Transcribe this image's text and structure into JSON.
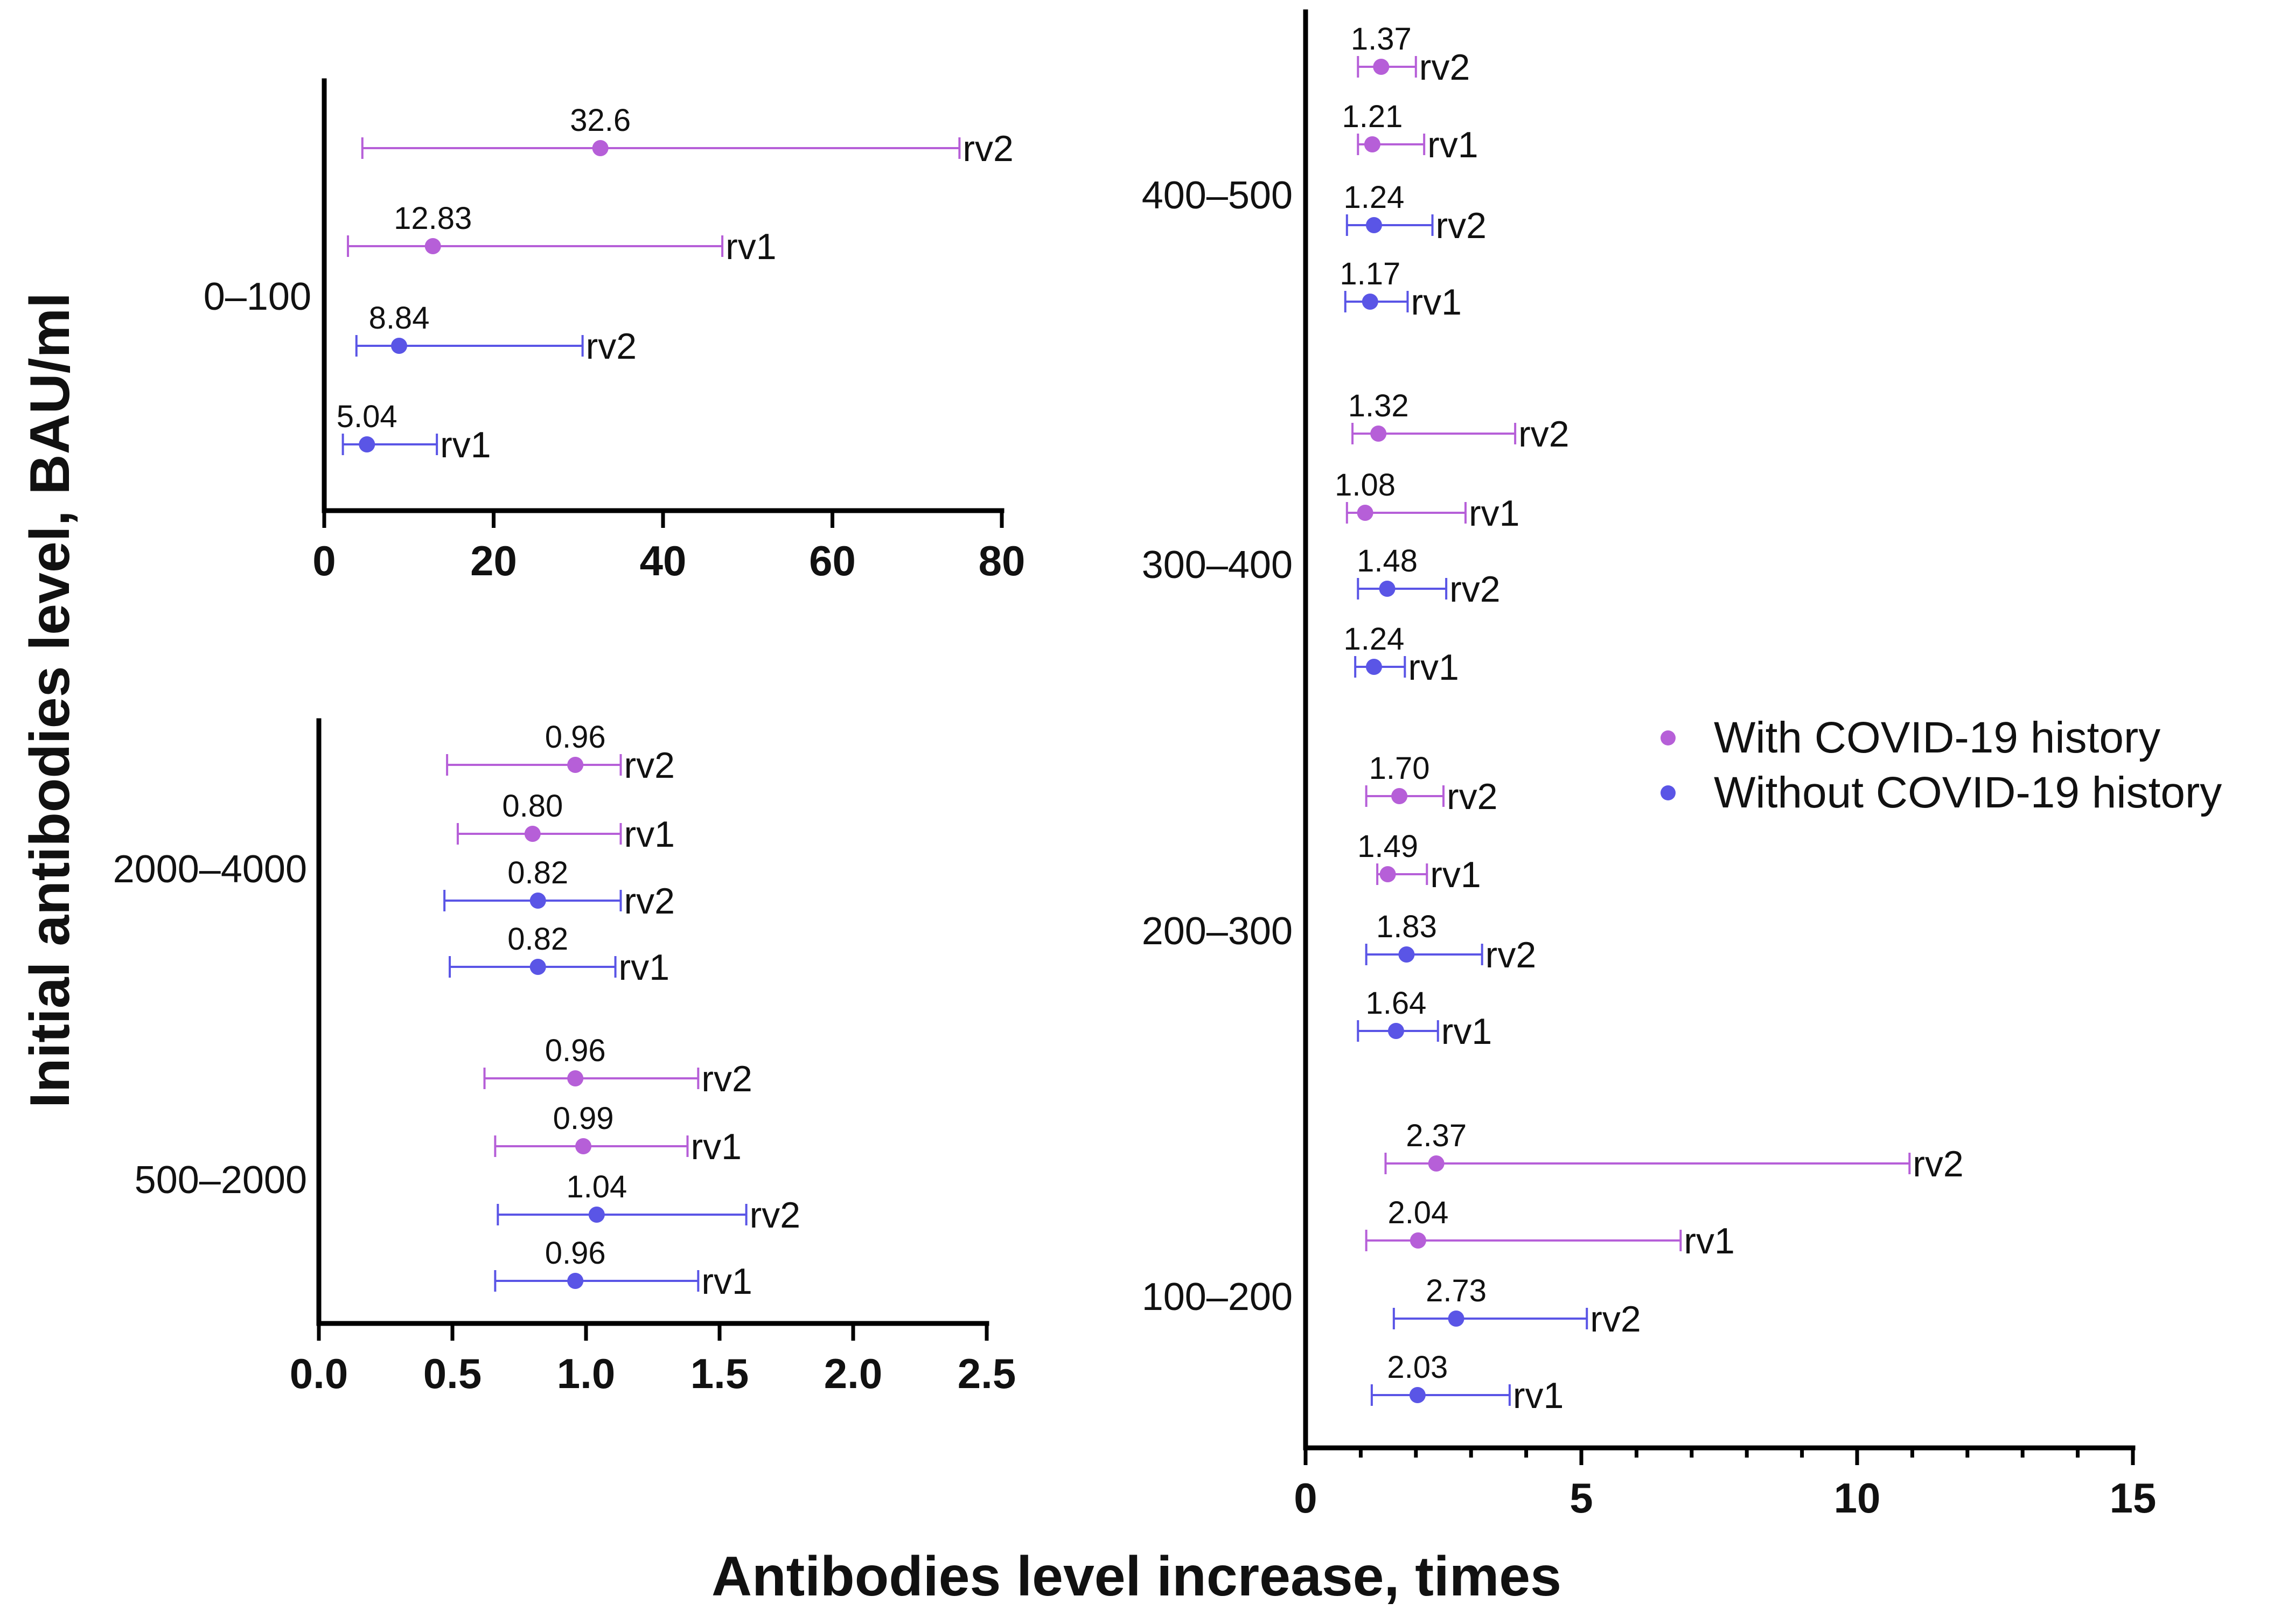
{
  "chart_data": {
    "type": "forest",
    "xlabel": "Antibodies level increase, times",
    "ylabel": "Initial antibodies level, BAU/ml",
    "legend": {
      "position": "right",
      "entries": [
        {
          "key": "with",
          "label": "With COVID-19 history",
          "color": "#b65fd8"
        },
        {
          "key": "without",
          "label": "Without COVID-19 history",
          "color": "#5a55e6"
        }
      ]
    },
    "panels": [
      {
        "id": "p0_100",
        "xlim": [
          0,
          80
        ],
        "ticks": [
          "0",
          "20",
          "40",
          "60",
          "80"
        ],
        "tick_values": [
          0,
          20,
          40,
          60,
          80
        ],
        "groups": [
          {
            "label": "0–100",
            "rows": [
              {
                "series": "with",
                "label": "rv2",
                "value": 32.6,
                "value_label": "32.6",
                "low": 4.5,
                "high": 75
              },
              {
                "series": "with",
                "label": "rv1",
                "value": 12.83,
                "value_label": "12.83",
                "low": 2.8,
                "high": 47
              },
              {
                "series": "without",
                "label": "rv2",
                "value": 8.84,
                "value_label": "8.84",
                "low": 3.8,
                "high": 30.5
              },
              {
                "series": "without",
                "label": "rv1",
                "value": 5.04,
                "value_label": "5.04",
                "low": 2.2,
                "high": 13.3
              }
            ]
          }
        ]
      },
      {
        "id": "p500_4000",
        "xlim": [
          0,
          2.5
        ],
        "ticks": [
          "0.0",
          "0.5",
          "1.0",
          "1.5",
          "2.0",
          "2.5"
        ],
        "tick_values": [
          0,
          0.5,
          1.0,
          1.5,
          2.0,
          2.5
        ],
        "groups": [
          {
            "label": "2000–4000",
            "rows": [
              {
                "series": "with",
                "label": "rv2",
                "value": 0.96,
                "value_label": "0.96",
                "low": 0.48,
                "high": 1.13
              },
              {
                "series": "with",
                "label": "rv1",
                "value": 0.8,
                "value_label": "0.80",
                "low": 0.52,
                "high": 1.13
              },
              {
                "series": "without",
                "label": "rv2",
                "value": 0.82,
                "value_label": "0.82",
                "low": 0.47,
                "high": 1.13
              },
              {
                "series": "without",
                "label": "rv1",
                "value": 0.82,
                "value_label": "0.82",
                "low": 0.49,
                "high": 1.11
              }
            ]
          },
          {
            "label": "500–2000",
            "rows": [
              {
                "series": "with",
                "label": "rv2",
                "value": 0.96,
                "value_label": "0.96",
                "low": 0.62,
                "high": 1.42
              },
              {
                "series": "with",
                "label": "rv1",
                "value": 0.99,
                "value_label": "0.99",
                "low": 0.66,
                "high": 1.38
              },
              {
                "series": "without",
                "label": "rv2",
                "value": 1.04,
                "value_label": "1.04",
                "low": 0.67,
                "high": 1.6
              },
              {
                "series": "without",
                "label": "rv1",
                "value": 0.96,
                "value_label": "0.96",
                "low": 0.66,
                "high": 1.42
              }
            ]
          }
        ]
      },
      {
        "id": "p100_500",
        "xlim": [
          0,
          15
        ],
        "ticks": [
          "0",
          "5",
          "10",
          "15"
        ],
        "tick_values": [
          0,
          5,
          10,
          15
        ],
        "groups": [
          {
            "label": "400–500",
            "rows": [
              {
                "series": "with",
                "label": "rv2",
                "value": 1.37,
                "value_label": "1.37",
                "low": 0.95,
                "high": 2.0
              },
              {
                "series": "with",
                "label": "rv1",
                "value": 1.21,
                "value_label": "1.21",
                "low": 0.95,
                "high": 2.15
              },
              {
                "series": "without",
                "label": "rv2",
                "value": 1.24,
                "value_label": "1.24",
                "low": 0.75,
                "high": 2.3
              },
              {
                "series": "without",
                "label": "rv1",
                "value": 1.17,
                "value_label": "1.17",
                "low": 0.72,
                "high": 1.85
              }
            ]
          },
          {
            "label": "300–400",
            "rows": [
              {
                "series": "with",
                "label": "rv2",
                "value": 1.32,
                "value_label": "1.32",
                "low": 0.85,
                "high": 3.8
              },
              {
                "series": "with",
                "label": "rv1",
                "value": 1.08,
                "value_label": "1.08",
                "low": 0.75,
                "high": 2.9
              },
              {
                "series": "without",
                "label": "rv2",
                "value": 1.48,
                "value_label": "1.48",
                "low": 0.95,
                "high": 2.55
              },
              {
                "series": "without",
                "label": "rv1",
                "value": 1.24,
                "value_label": "1.24",
                "low": 0.9,
                "high": 1.8
              }
            ]
          },
          {
            "label": "200–300",
            "rows": [
              {
                "series": "with",
                "label": "rv2",
                "value": 1.7,
                "value_label": "1.70",
                "low": 1.1,
                "high": 2.5
              },
              {
                "series": "with",
                "label": "rv1",
                "value": 1.49,
                "value_label": "1.49",
                "low": 1.3,
                "high": 2.2
              },
              {
                "series": "without",
                "label": "rv2",
                "value": 1.83,
                "value_label": "1.83",
                "low": 1.1,
                "high": 3.2
              },
              {
                "series": "without",
                "label": "rv1",
                "value": 1.64,
                "value_label": "1.64",
                "low": 0.95,
                "high": 2.4
              }
            ]
          },
          {
            "label": "100–200",
            "rows": [
              {
                "series": "with",
                "label": "rv2",
                "value": 2.37,
                "value_label": "2.37",
                "low": 1.45,
                "high": 10.95
              },
              {
                "series": "with",
                "label": "rv1",
                "value": 2.04,
                "value_label": "2.04",
                "low": 1.1,
                "high": 6.8
              },
              {
                "series": "without",
                "label": "rv2",
                "value": 2.73,
                "value_label": "2.73",
                "low": 1.6,
                "high": 5.1
              },
              {
                "series": "without",
                "label": "rv1",
                "value": 2.03,
                "value_label": "2.03",
                "low": 1.2,
                "high": 3.7
              }
            ]
          }
        ]
      }
    ]
  }
}
